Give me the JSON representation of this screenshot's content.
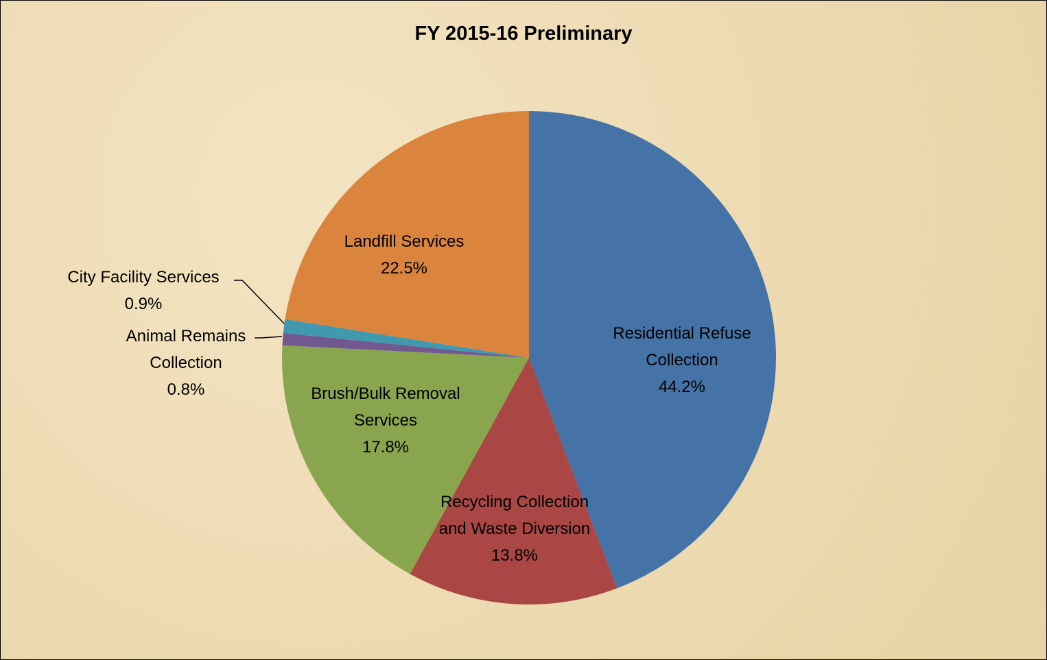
{
  "chart_data": {
    "type": "pie",
    "title": "FY 2015-16  Preliminary",
    "categories": [
      "Residential Refuse Collection",
      "Recycling Collection and Waste Diversion",
      "Brush/Bulk Removal Services",
      "Animal Remains Collection",
      "City Facility Services",
      "Landfill Services"
    ],
    "values": [
      44.2,
      13.8,
      17.8,
      0.8,
      0.9,
      22.5
    ],
    "value_labels": [
      "44.2%",
      "13.8%",
      "17.8%",
      "0.8%",
      "0.9%",
      "22.5%"
    ],
    "colors": [
      "#4572a7",
      "#aa4643",
      "#89a54e",
      "#71588f",
      "#4198af",
      "#db843d"
    ]
  }
}
